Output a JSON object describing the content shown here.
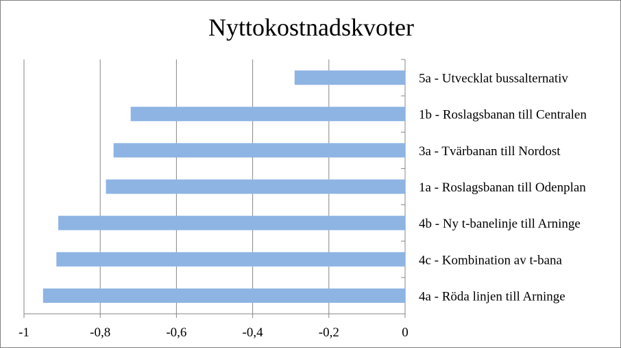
{
  "chart_data": {
    "type": "bar",
    "orientation": "horizontal",
    "title": "Nyttokostnadskvoter",
    "xlabel": "",
    "ylabel": "",
    "xlim": [
      -1,
      0
    ],
    "x_ticks": [
      -1,
      -0.8,
      -0.6,
      -0.4,
      -0.2,
      0
    ],
    "x_tick_labels": [
      "-1",
      "-0,8",
      "-0,6",
      "-0,4",
      "-0,2",
      "0"
    ],
    "grid": "vertical",
    "legend": "none",
    "bar_color": "#8eb4e3",
    "categories": [
      "5a - Utvecklat bussalternativ",
      "1b - Roslagsbanan till Centralen",
      "3a - Tvärbanan till Nordost",
      "1a - Roslagsbanan till Odenplan",
      "4b - Ny t-banelinje till Arninge",
      "4c - Kombination av t-bana",
      "4a - Röda linjen till Arninge"
    ],
    "values": [
      -0.29,
      -0.72,
      -0.765,
      -0.785,
      -0.91,
      -0.915,
      -0.95
    ]
  }
}
